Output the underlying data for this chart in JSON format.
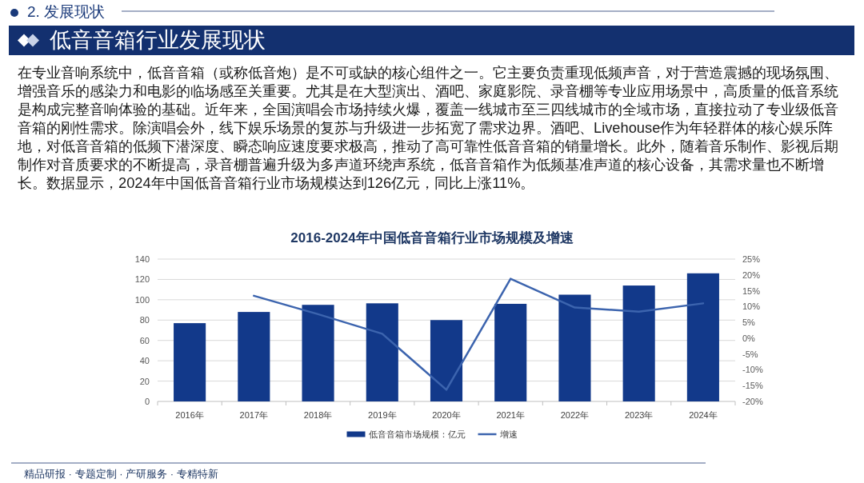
{
  "chart_data": {
    "type": "bar",
    "title": "2016-2024年中国低音音箱行业市场规模及增速",
    "categories": [
      "2016年",
      "2017年",
      "2018年",
      "2019年",
      "2020年",
      "2021年",
      "2022年",
      "2023年",
      "2024年"
    ],
    "series": [
      {
        "name": "低音音箱市场规模：亿元",
        "color": "#12398a",
        "values": [
          77,
          88,
          95,
          96.5,
          80,
          96,
          105,
          114,
          126
        ]
      },
      {
        "name": "增速",
        "type": "line",
        "axis": "y2",
        "color": "#3c64ae",
        "values": [
          null,
          13.4,
          7.6,
          1.4,
          -16.3,
          18.8,
          9.7,
          8.4,
          11
        ]
      }
    ],
    "ylim": [
      0,
      140
    ],
    "yticks": [
      0,
      20,
      40,
      60,
      80,
      100,
      120,
      140
    ],
    "y2lim": [
      -20,
      25
    ],
    "y2ticks": [
      {
        "value": -20,
        "label": "-20%"
      },
      {
        "value": -15,
        "label": "-15%"
      },
      {
        "value": -10,
        "label": "-10%"
      },
      {
        "value": -5,
        "label": "-5%"
      },
      {
        "value": 0,
        "label": "0%"
      },
      {
        "value": 5,
        "label": "5%"
      },
      {
        "value": 10,
        "label": "10%"
      },
      {
        "value": 15,
        "label": "15%"
      },
      {
        "value": 20,
        "label": "20%"
      },
      {
        "value": 25,
        "label": "25%"
      }
    ],
    "grid": "y",
    "legend": "bottom",
    "annotations": [
      "2. 发展现状",
      "低音音箱行业发展现状",
      "在专业音响系统中，低音音箱（或称低音炮）是不可或缺的核心组件之一。它主要负责重现低频声音，对于营造震撼的现场氛围、增强音乐的感染力和电影的临场感至关重要。尤其是在大型演出、酒吧、家庭影院、录音棚等专业应用场景中，高质量的低音系统是构成完整音响体验的基础。近年来，全国演唱会市场持续火爆，覆盖一线城市至三四线城市的全域市场，直接拉动了专业级低音音箱的刚性需求。除演唱会外，线下娱乐场景的复苏与升级进一步拓宽了需求边界。酒吧、Livehouse作为年轻群体的核心娱乐阵地，对低音音箱的低频下潜深度、瞬态响应速度要求极高，推动了高可靠性低音音箱的销量增长。此外，随着音乐制作、影视后期制作对音质要求的不断提高，录音棚普遍升级为多声道环绕声系统，低音音箱作为低频基准声道的核心设备，其需求量也不断增长。数据显示，2024年中国低音音箱行业市场规模达到126亿元，同比上涨11%。",
      "精品研报 · 专题定制 · 产研服务 · 专精特新"
    ]
  }
}
